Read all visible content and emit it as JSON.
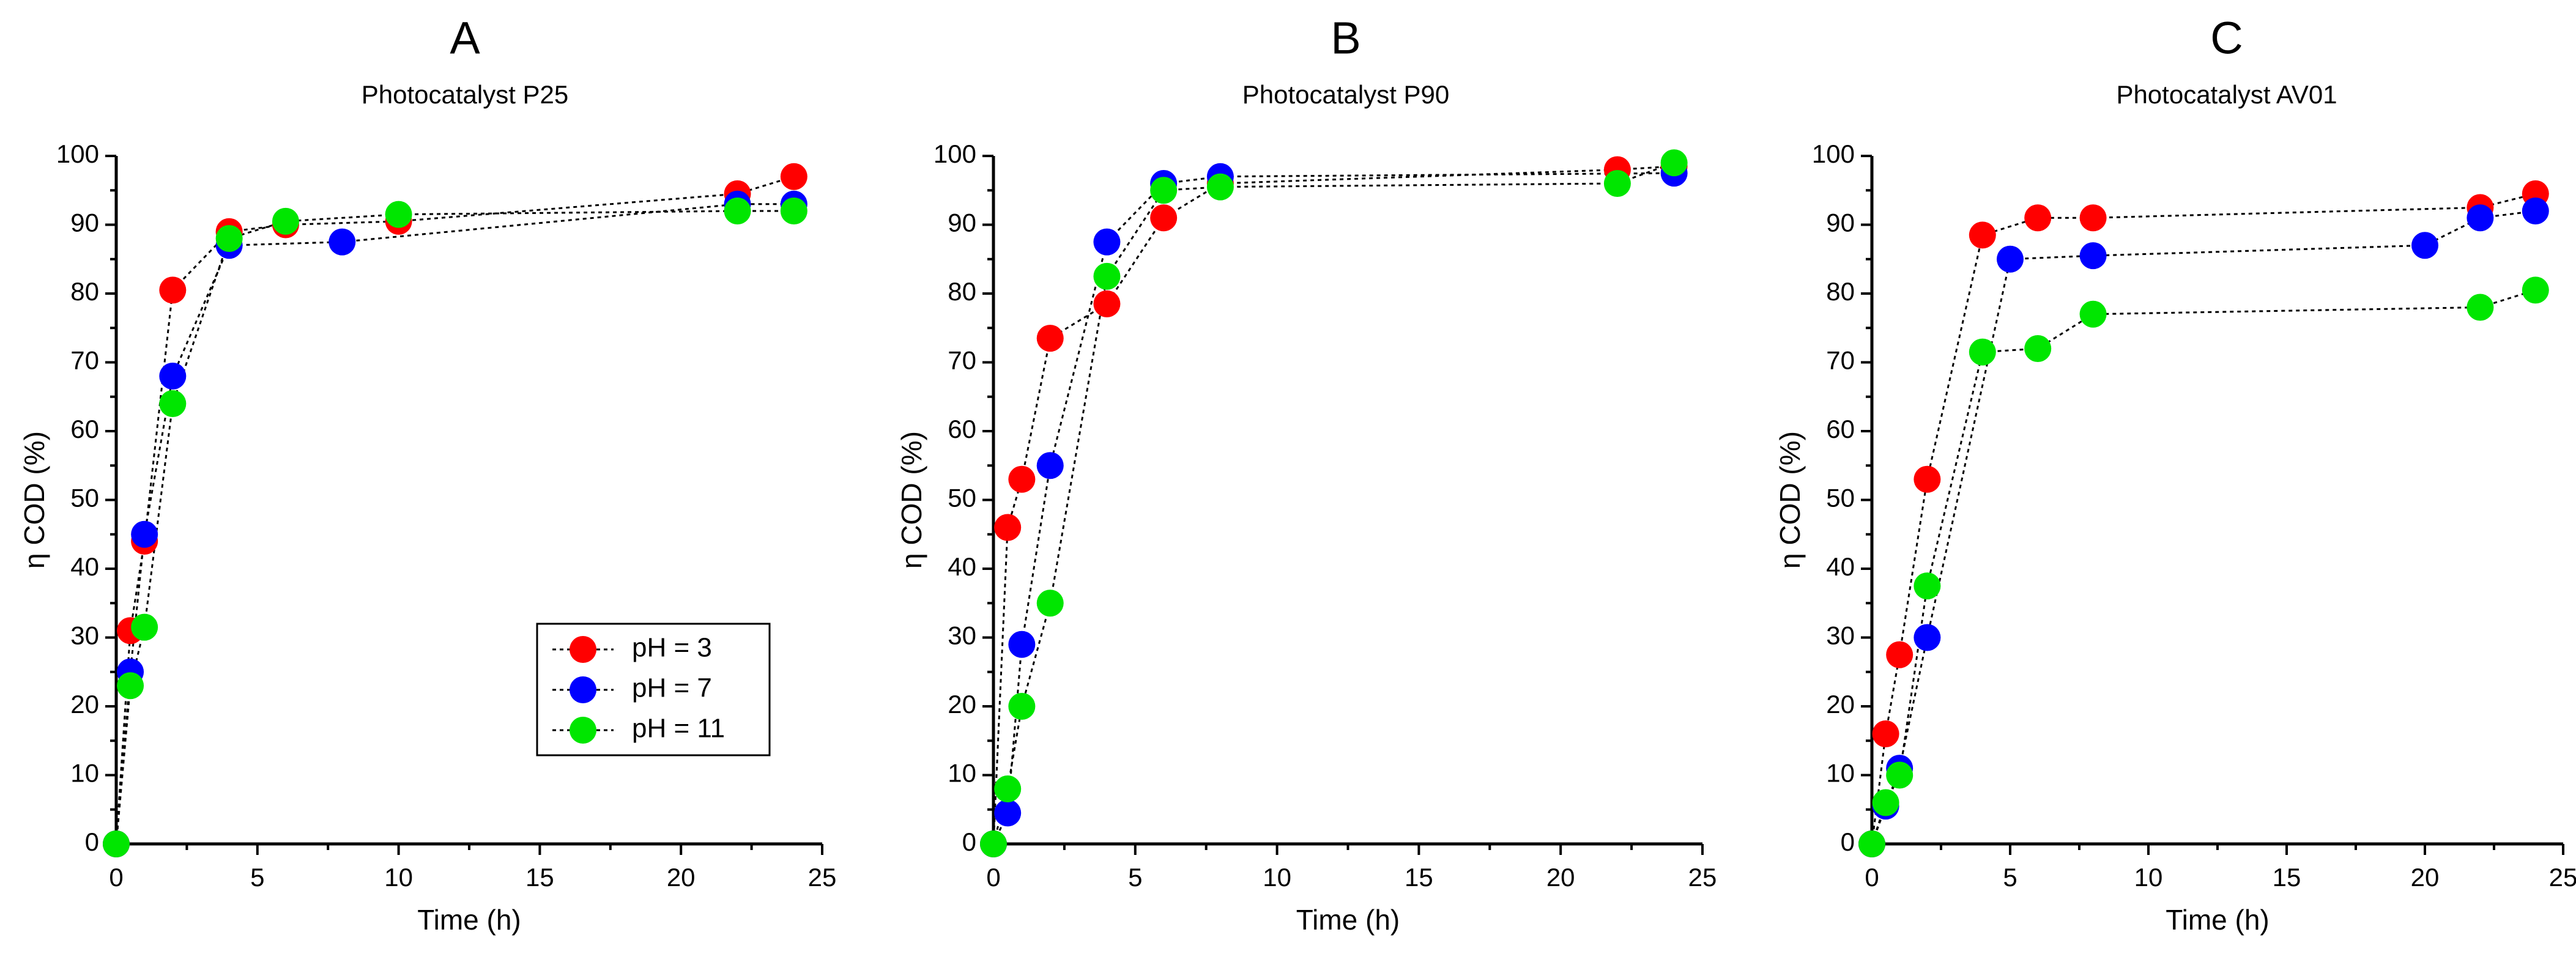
{
  "chart_data": [
    {
      "type": "scatter",
      "panel_letter": "A",
      "title": "Photocatalyst P25",
      "xlabel": "Time (h)",
      "ylabel": "η COD (%)",
      "xlim": [
        0,
        25
      ],
      "ylim": [
        0,
        100
      ],
      "xticks": [
        0,
        5,
        10,
        15,
        20,
        25
      ],
      "yticks": [
        0,
        10,
        20,
        30,
        40,
        50,
        60,
        70,
        80,
        90,
        100
      ],
      "show_legend": true,
      "legend_position": "center-right",
      "series": [
        {
          "name": "pH = 3",
          "color": "#ff0000",
          "x": [
            0,
            0.5,
            1,
            2,
            4,
            6,
            10,
            22,
            24
          ],
          "y": [
            0,
            31,
            44,
            80.5,
            89,
            90,
            90.5,
            94.5,
            97
          ]
        },
        {
          "name": "pH = 7",
          "color": "#0000ff",
          "x": [
            0,
            0.5,
            1,
            2,
            4,
            8,
            22,
            24
          ],
          "y": [
            0,
            25,
            45,
            68,
            87,
            87.5,
            93,
            93
          ]
        },
        {
          "name": "pH = 11",
          "color": "#00e600",
          "x": [
            0,
            0.5,
            1,
            2,
            4,
            6,
            10,
            22,
            24
          ],
          "y": [
            0,
            23,
            31.5,
            64,
            88,
            90.5,
            91.5,
            92,
            92
          ]
        }
      ]
    },
    {
      "type": "scatter",
      "panel_letter": "B",
      "title": "Photocatalyst P90",
      "xlabel": "Time (h)",
      "ylabel": "η COD (%)",
      "xlim": [
        0,
        25
      ],
      "ylim": [
        0,
        100
      ],
      "xticks": [
        0,
        5,
        10,
        15,
        20,
        25
      ],
      "yticks": [
        0,
        10,
        20,
        30,
        40,
        50,
        60,
        70,
        80,
        90,
        100
      ],
      "show_legend": false,
      "series": [
        {
          "name": "pH = 3",
          "color": "#ff0000",
          "x": [
            0,
            0.5,
            1,
            2,
            4,
            6,
            8,
            22,
            24
          ],
          "y": [
            0,
            46,
            53,
            73.5,
            78.5,
            91,
            96,
            98,
            98.5
          ]
        },
        {
          "name": "pH = 7",
          "color": "#0000ff",
          "x": [
            0,
            0.5,
            1,
            2,
            4,
            6,
            8,
            24
          ],
          "y": [
            0,
            4.5,
            29,
            55,
            87.5,
            96,
            97,
            97.5
          ]
        },
        {
          "name": "pH = 11",
          "color": "#00e600",
          "x": [
            0,
            0.5,
            1,
            2,
            4,
            6,
            8,
            22,
            24
          ],
          "y": [
            0,
            8,
            20,
            35,
            82.5,
            95,
            95.5,
            96,
            99
          ]
        }
      ]
    },
    {
      "type": "scatter",
      "panel_letter": "C",
      "title": "Photocatalyst AV01",
      "xlabel": "Time (h)",
      "ylabel": "η COD (%)",
      "xlim": [
        0,
        25
      ],
      "ylim": [
        0,
        100
      ],
      "xticks": [
        0,
        5,
        10,
        15,
        20,
        25
      ],
      "yticks": [
        0,
        10,
        20,
        30,
        40,
        50,
        60,
        70,
        80,
        90,
        100
      ],
      "show_legend": false,
      "series": [
        {
          "name": "pH = 3",
          "color": "#ff0000",
          "x": [
            0,
            0.5,
            1,
            2,
            4,
            6,
            8,
            22,
            24
          ],
          "y": [
            0,
            16,
            27.5,
            53,
            88.5,
            91,
            91,
            92.5,
            94.5
          ]
        },
        {
          "name": "pH = 7",
          "color": "#0000ff",
          "x": [
            0,
            0.5,
            1,
            2,
            5,
            8,
            20,
            22,
            24
          ],
          "y": [
            0,
            5.5,
            11,
            30,
            85,
            85.5,
            87,
            91,
            92
          ]
        },
        {
          "name": "pH = 11",
          "color": "#00e600",
          "x": [
            0,
            0.5,
            1,
            2,
            4,
            6,
            8,
            22,
            24
          ],
          "y": [
            0,
            6,
            10,
            37.5,
            71.5,
            72,
            77,
            78,
            80.5
          ]
        }
      ]
    }
  ]
}
